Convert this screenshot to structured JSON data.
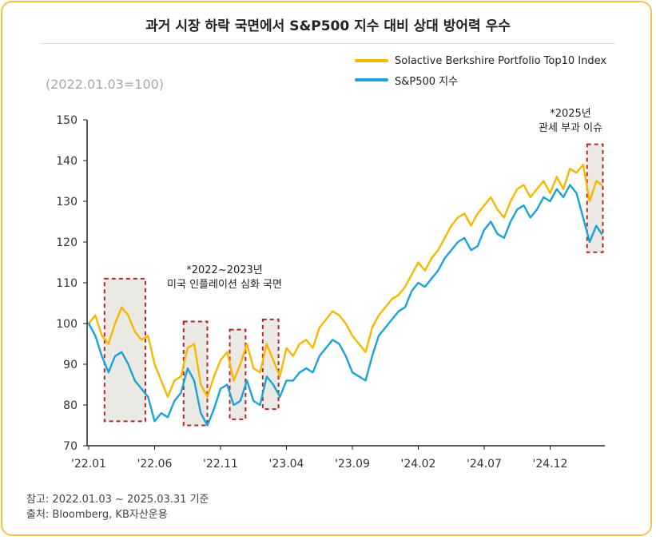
{
  "title": "과거 시장 하락 국면에서 S&P500 지수 대비 상대 방어력 우수",
  "base_note": "(2022.01.03=100)",
  "annotations": {
    "a2022_line1": "*2022~2023년",
    "a2022_line2": "미국 인플레이션 심화 국면",
    "a2025_line1": "*2025년",
    "a2025_line2": "관세 부과 이슈"
  },
  "footnotes": {
    "ref": "참고: 2022.01.03 ~ 2025.03.31 기준",
    "source": "출처: Bloomberg, KB자산운용"
  },
  "colors": {
    "solactive": "#f5b800",
    "sp500": "#1aa3d9",
    "highlight_box": "#b3262c",
    "highlight_fill": "#ebe9e3",
    "border": "#f3c24d"
  },
  "chart_data": {
    "type": "line",
    "title": "과거 시장 하락 국면에서 S&P500 지수 대비 상대 방어력 우수",
    "xlabel": "",
    "ylabel": "",
    "ylim": [
      70,
      150
    ],
    "yticks": [
      "70",
      "80",
      "90",
      "100",
      "110",
      "120",
      "130",
      "140",
      "150"
    ],
    "xticks": [
      "'22.01",
      "'22.06",
      "'22.11",
      "'23.04",
      "'23.09",
      "'24.02",
      "'24.07",
      "'24.12"
    ],
    "xtick_months": [
      0,
      5,
      10,
      15,
      20,
      25,
      30,
      35
    ],
    "x_months_end": 38.9,
    "legend_position": "top-right",
    "series": [
      {
        "name": "Solactive Berkshire Portfolio Top10 Index",
        "color": "#f5b800",
        "x": [
          0,
          0.5,
          1,
          1.5,
          2,
          2.5,
          3,
          3.5,
          4,
          4.5,
          5,
          5.5,
          6,
          6.5,
          7,
          7.5,
          8,
          8.5,
          9,
          9.5,
          10,
          10.5,
          11,
          11.5,
          12,
          12.5,
          13,
          13.5,
          14,
          14.5,
          15,
          15.5,
          16,
          16.5,
          17,
          17.5,
          18,
          18.5,
          19,
          19.5,
          20,
          20.5,
          21,
          21.5,
          22,
          22.5,
          23,
          23.5,
          24,
          24.5,
          25,
          25.5,
          26,
          26.5,
          27,
          27.5,
          28,
          28.5,
          29,
          29.5,
          30,
          30.5,
          31,
          31.5,
          32,
          32.5,
          33,
          33.5,
          34,
          34.5,
          35,
          35.5,
          36,
          36.5,
          37,
          37.5,
          38,
          38.5,
          38.9
        ],
        "values": [
          100,
          102,
          97,
          95,
          100,
          104,
          102,
          98,
          96,
          97,
          90,
          86,
          82,
          86,
          87,
          94,
          95,
          85,
          82,
          87,
          91,
          93,
          86,
          90,
          95,
          89,
          88,
          95,
          91,
          87,
          94,
          92,
          95,
          96,
          94,
          99,
          101,
          103,
          102,
          100,
          97,
          95,
          93,
          99,
          102,
          104,
          106,
          107,
          109,
          112,
          115,
          113,
          116,
          118,
          121,
          124,
          126,
          127,
          124,
          127,
          129,
          131,
          128,
          126,
          130,
          133,
          134,
          131,
          133,
          135,
          132,
          136,
          133,
          138,
          137,
          139,
          130,
          135,
          134
        ],
        "labels_shown": false
      },
      {
        "name": "S&P500 지수",
        "color": "#1aa3d9",
        "x": [
          0,
          0.5,
          1,
          1.5,
          2,
          2.5,
          3,
          3.5,
          4,
          4.5,
          5,
          5.5,
          6,
          6.5,
          7,
          7.5,
          8,
          8.5,
          9,
          9.5,
          10,
          10.5,
          11,
          11.5,
          12,
          12.5,
          13,
          13.5,
          14,
          14.5,
          15,
          15.5,
          16,
          16.5,
          17,
          17.5,
          18,
          18.5,
          19,
          19.5,
          20,
          20.5,
          21,
          21.5,
          22,
          22.5,
          23,
          23.5,
          24,
          24.5,
          25,
          25.5,
          26,
          26.5,
          27,
          27.5,
          28,
          28.5,
          29,
          29.5,
          30,
          30.5,
          31,
          31.5,
          32,
          32.5,
          33,
          33.5,
          34,
          34.5,
          35,
          35.5,
          36,
          36.5,
          37,
          37.5,
          38,
          38.5,
          38.9
        ],
        "values": [
          100,
          97,
          92,
          88,
          92,
          93,
          90,
          86,
          84,
          82,
          76,
          78,
          77,
          81,
          83,
          89,
          86,
          78,
          75,
          79,
          84,
          85,
          80,
          81,
          86,
          81,
          80,
          87,
          85,
          82,
          86,
          86,
          88,
          89,
          88,
          92,
          94,
          96,
          95,
          92,
          88,
          87,
          86,
          92,
          97,
          99,
          101,
          103,
          104,
          108,
          110,
          109,
          111,
          113,
          116,
          118,
          120,
          121,
          118,
          119,
          123,
          125,
          122,
          121,
          125,
          128,
          129,
          126,
          128,
          131,
          130,
          133,
          131,
          134,
          132,
          126,
          120,
          124,
          122
        ],
        "labels_shown": false
      }
    ],
    "highlight_regions": [
      {
        "x0": 1.2,
        "x1": 4.3,
        "y0": 76,
        "y1": 111,
        "label": "*2022~2023년 미국 인플레이션 심화 국면"
      },
      {
        "x0": 7.2,
        "x1": 9.0,
        "y0": 75,
        "y1": 100.5,
        "label": ""
      },
      {
        "x0": 10.7,
        "x1": 11.9,
        "y0": 76.5,
        "y1": 98.5,
        "label": ""
      },
      {
        "x0": 13.2,
        "x1": 14.4,
        "y0": 79,
        "y1": 101,
        "label": ""
      },
      {
        "x0": 37.8,
        "x1": 39.0,
        "y0": 117.5,
        "y1": 144,
        "label": "*2025년 관세 부과 이슈"
      }
    ]
  }
}
